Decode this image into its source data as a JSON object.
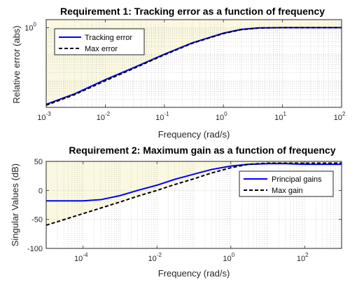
{
  "colors": {
    "background": "#ffffff",
    "plot_background": "#ffffff",
    "shade": "#faf8e0",
    "axis": "#262626",
    "grid": "#b0b0b0",
    "series_blue": "#0000ff",
    "series_black": "#000000"
  },
  "chart_data": [
    {
      "type": "line",
      "title": "Requirement 1: Tracking error as a function of frequency",
      "xlabel": "Frequency (rad/s)",
      "ylabel": "Relative error (abs)",
      "xscale": "log",
      "yscale": "log",
      "xlim": [
        0.001,
        100
      ],
      "ylim": [
        0.001,
        2
      ],
      "x_ticks": [
        {
          "base": "10",
          "exp": "-3",
          "value": 0.001
        },
        {
          "base": "10",
          "exp": "-2",
          "value": 0.01
        },
        {
          "base": "10",
          "exp": "-1",
          "value": 0.1
        },
        {
          "base": "10",
          "exp": "0",
          "value": 1
        },
        {
          "base": "10",
          "exp": "1",
          "value": 10
        },
        {
          "base": "10",
          "exp": "2",
          "value": 100
        }
      ],
      "y_ticks": [
        {
          "base": "10",
          "exp": "0",
          "value": 1
        }
      ],
      "grid": true,
      "shaded_region": "above max error curve",
      "legend": {
        "placement": "top-left",
        "entries": [
          "Tracking error",
          "Max error"
        ]
      },
      "series": [
        {
          "name": "Tracking error",
          "style": "solid",
          "color": "#0000ff",
          "x": [
            0.001,
            0.003,
            0.01,
            0.03,
            0.1,
            0.3,
            1,
            2,
            4,
            10,
            30,
            100
          ],
          "y": [
            0.0013,
            0.0032,
            0.011,
            0.031,
            0.1,
            0.27,
            0.62,
            0.86,
            0.98,
            1.0,
            1.0,
            1.0
          ]
        },
        {
          "name": "Max error",
          "style": "dashed",
          "color": "#000000",
          "x": [
            0.001,
            0.003,
            0.01,
            0.03,
            0.1,
            0.3,
            1,
            2,
            4,
            10,
            30,
            100
          ],
          "y": [
            0.0012,
            0.003,
            0.01,
            0.029,
            0.095,
            0.26,
            0.6,
            0.84,
            0.97,
            1.0,
            1.0,
            1.0
          ]
        }
      ]
    },
    {
      "type": "line",
      "title": "Requirement 2: Maximum gain as a function of frequency",
      "xlabel": "Frequency (rad/s)",
      "ylabel": "Singular Values (dB)",
      "xscale": "log",
      "yscale": "linear",
      "xlim": [
        1e-05,
        1000
      ],
      "ylim": [
        -100,
        50
      ],
      "x_ticks": [
        {
          "base": "10",
          "exp": "-4",
          "value": 0.0001
        },
        {
          "base": "10",
          "exp": "-2",
          "value": 0.01
        },
        {
          "base": "10",
          "exp": "0",
          "value": 1
        },
        {
          "base": "10",
          "exp": "2",
          "value": 100
        }
      ],
      "y_ticks": [
        {
          "label": "50",
          "value": 50
        },
        {
          "label": "0",
          "value": 0
        },
        {
          "label": "-50",
          "value": -50
        },
        {
          "label": "-100",
          "value": -100
        }
      ],
      "grid": true,
      "shaded_region": "below max gain curve",
      "legend": {
        "placement": "top-right",
        "entries": [
          "Principal gains",
          "Max gain"
        ]
      },
      "series": [
        {
          "name": "Principal gains",
          "style": "solid",
          "color": "#0000ff",
          "x": [
            1e-05,
            0.0001,
            0.0003,
            0.001,
            0.003,
            0.01,
            0.03,
            0.1,
            0.3,
            1,
            3,
            10,
            30,
            100,
            1000
          ],
          "y": [
            -18,
            -18,
            -16,
            -9,
            0,
            9,
            19,
            28,
            36,
            42,
            45,
            46,
            46,
            45,
            45
          ]
        },
        {
          "name": "Max gain",
          "style": "dashed",
          "color": "#000000",
          "x": [
            1e-05,
            0.0001,
            0.001,
            0.003,
            0.01,
            0.03,
            0.1,
            0.3,
            1,
            3,
            10,
            30,
            100,
            1000
          ],
          "y": [
            -60,
            -40,
            -20,
            -10,
            0,
            10,
            20,
            30,
            39,
            45,
            47,
            47,
            47,
            47
          ]
        }
      ]
    }
  ]
}
